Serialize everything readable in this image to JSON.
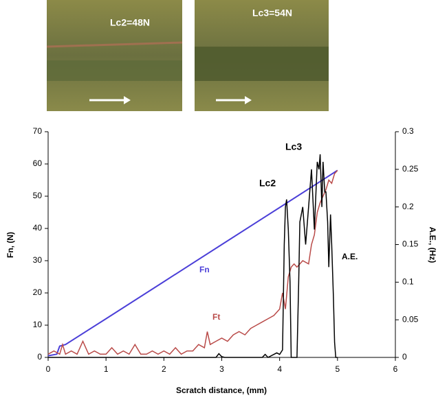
{
  "images": [
    {
      "label": "Lc2=48N"
    },
    {
      "label": "Lc3=54N"
    }
  ],
  "chart_data": {
    "type": "line",
    "x_label": "Scratch distance, (mm)",
    "y_label": "Fn, (N)",
    "y2_label": "A.E., (Hz)",
    "xlim": [
      0,
      6
    ],
    "xticks": [
      0,
      1,
      2,
      3,
      4,
      5,
      6
    ],
    "ylim": [
      0,
      70
    ],
    "yticks": [
      0,
      10,
      20,
      30,
      40,
      50,
      60,
      70
    ],
    "y2lim": [
      0,
      0.3
    ],
    "y2ticks": [
      0,
      0.05,
      0.1,
      0.15,
      0.2,
      0.25,
      0.3
    ],
    "annotations": [
      "Lc2",
      "Lc3",
      "A.E.",
      "Fn",
      "Ft"
    ],
    "series": [
      {
        "name": "Fn",
        "color": "#4b3fd8",
        "x": [
          0,
          0.15,
          0.2,
          0.3,
          1,
          2,
          3,
          4,
          5
        ],
        "values": [
          0.5,
          1,
          3.5,
          4,
          12,
          23.5,
          35,
          46.5,
          58
        ]
      },
      {
        "name": "Ft",
        "color": "#b94a48",
        "x": [
          0,
          0.1,
          0.2,
          0.25,
          0.3,
          0.4,
          0.5,
          0.6,
          0.7,
          0.8,
          0.9,
          1.0,
          1.1,
          1.2,
          1.3,
          1.4,
          1.5,
          1.6,
          1.7,
          1.8,
          1.9,
          2.0,
          2.1,
          2.2,
          2.3,
          2.4,
          2.5,
          2.6,
          2.7,
          2.75,
          2.8,
          2.9,
          3.0,
          3.1,
          3.2,
          3.3,
          3.4,
          3.5,
          3.6,
          3.7,
          3.8,
          3.9,
          4.0,
          4.05,
          4.1,
          4.15,
          4.2,
          4.25,
          4.3,
          4.4,
          4.5,
          4.55,
          4.6,
          4.65,
          4.7,
          4.75,
          4.8,
          4.85,
          4.9,
          4.95,
          5.0
        ],
        "values": [
          1,
          2,
          1,
          4,
          1,
          2,
          1,
          5,
          1,
          2,
          1,
          1,
          3,
          1,
          2,
          1,
          4,
          1,
          1,
          2,
          1,
          2,
          1,
          3,
          1,
          2,
          2,
          4,
          3,
          8,
          4,
          5,
          6,
          5,
          7,
          8,
          7,
          9,
          10,
          11,
          12,
          13,
          15,
          20,
          15,
          25,
          28,
          29,
          28,
          30,
          29,
          35,
          38,
          45,
          48,
          50,
          52,
          55,
          54,
          57,
          58
        ]
      },
      {
        "name": "A.E.",
        "color": "#000000",
        "axis": "y2",
        "x": [
          0,
          1,
          2,
          2.9,
          2.95,
          3.0,
          3.05,
          3.7,
          3.75,
          3.8,
          3.95,
          4.0,
          4.05,
          4.08,
          4.1,
          4.12,
          4.15,
          4.18,
          4.2,
          4.3,
          4.33,
          4.35,
          4.4,
          4.45,
          4.5,
          4.55,
          4.6,
          4.65,
          4.68,
          4.7,
          4.73,
          4.75,
          4.78,
          4.8,
          4.83,
          4.85,
          4.88,
          4.9,
          4.93,
          4.95,
          4.97,
          5.0
        ],
        "values": [
          0,
          0,
          0,
          0,
          0.005,
          0.001,
          0,
          0,
          0.004,
          0,
          0.006,
          0.004,
          0.01,
          0.15,
          0.2,
          0.21,
          0.17,
          0.1,
          0.0,
          0,
          0.1,
          0.18,
          0.2,
          0.15,
          0.2,
          0.25,
          0.17,
          0.26,
          0.25,
          0.27,
          0.2,
          0.26,
          0.22,
          0.22,
          0.18,
          0.12,
          0.19,
          0.15,
          0.08,
          0.02,
          0,
          0
        ]
      }
    ]
  }
}
